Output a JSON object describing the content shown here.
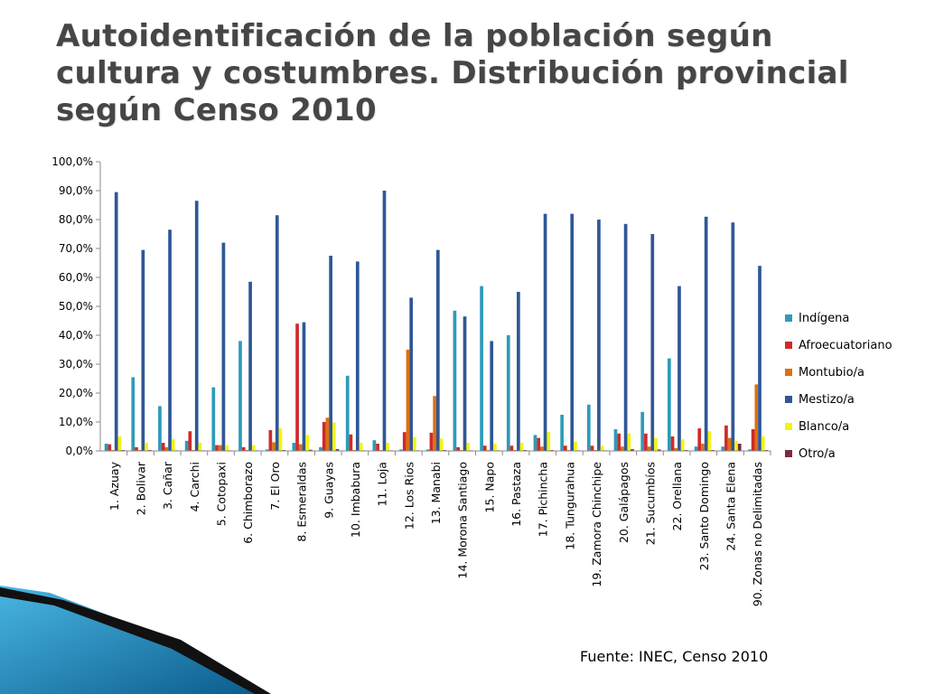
{
  "slide": {
    "title": "Autoidentificación de la población según cultura y costumbres. Distribución provincial según Censo 2010",
    "source": "Fuente: INEC, Censo 2010"
  },
  "chart_data": {
    "type": "bar",
    "categories": [
      "1. Azuay",
      "2. Bolivar",
      "3. Cañar",
      "4. Carchi",
      "5. Cotopaxi",
      "6. Chimborazo",
      "7. El Oro",
      "8. Esmeraldas",
      "9. Guayas",
      "10. Imbabura",
      "11. Loja",
      "12. Los Rios",
      "13. Manabi",
      "14. Morona Santiago",
      "15. Napo",
      "16. Pastaza",
      "17. Pichincha",
      "18. Tungurahua",
      "19. Zamora Chinchipe",
      "20. Galápagos",
      "21. Sucumbíos",
      "22. Orellana",
      "23. Santo Domingo",
      "24. Santa Elena",
      "90. Zonas no Delimitadas"
    ],
    "ylim": [
      0,
      100
    ],
    "yticks": [
      "0,0%",
      "10,0%",
      "20,0%",
      "30,0%",
      "40,0%",
      "50,0%",
      "60,0%",
      "70,0%",
      "80,0%",
      "90,0%",
      "100,0%"
    ],
    "legend_position": "right",
    "grid": false,
    "series": [
      {
        "name": "Indígena",
        "color": "#2e9bb8",
        "values": [
          2.5,
          25.5,
          15.5,
          3.5,
          22.0,
          38.0,
          0.5,
          2.8,
          1.3,
          26.0,
          3.7,
          0.5,
          0.5,
          48.5,
          57.0,
          40.0,
          5.5,
          12.5,
          16.0,
          7.5,
          13.5,
          32.0,
          1.5,
          1.5,
          0.5
        ]
      },
      {
        "name": "Afroecuatoriano",
        "color": "#cf2a2a",
        "values": [
          2.3,
          1.3,
          2.8,
          6.8,
          2.0,
          1.3,
          7.2,
          44.0,
          10.0,
          5.7,
          2.5,
          6.5,
          6.3,
          1.3,
          1.8,
          1.8,
          4.5,
          1.8,
          1.8,
          6.0,
          6.0,
          5.0,
          7.8,
          8.8,
          7.5
        ]
      },
      {
        "name": "Montubio/a",
        "color": "#de7010",
        "values": [
          0.3,
          0.3,
          1.3,
          0.3,
          2.0,
          0.3,
          3.0,
          2.3,
          11.5,
          0.3,
          0.3,
          35.0,
          19.0,
          0.3,
          0.3,
          0.3,
          1.5,
          0.3,
          0.3,
          1.5,
          1.5,
          1.0,
          2.5,
          4.5,
          23.0
        ]
      },
      {
        "name": "Mestizo/a",
        "color": "#2f5797",
        "values": [
          89.5,
          69.5,
          76.5,
          86.5,
          72.0,
          58.5,
          81.5,
          44.5,
          67.5,
          65.5,
          90.0,
          53.0,
          69.5,
          46.5,
          38.0,
          55.0,
          82.0,
          82.0,
          80.0,
          78.5,
          75.0,
          57.0,
          81.0,
          79.0,
          64.0
        ]
      },
      {
        "name": "Blanco/a",
        "color": "#f4f40d",
        "values": [
          5.0,
          2.8,
          4.0,
          2.8,
          2.0,
          2.0,
          7.8,
          5.5,
          9.8,
          2.8,
          2.8,
          4.8,
          4.3,
          2.8,
          2.5,
          2.8,
          6.5,
          3.2,
          1.8,
          6.0,
          4.5,
          4.0,
          6.8,
          3.5,
          5.0
        ]
      },
      {
        "name": "Otro/a",
        "color": "#7a2c3e",
        "values": [
          0.3,
          0.3,
          0.2,
          0.2,
          0.2,
          0.2,
          0.3,
          0.4,
          0.6,
          0.2,
          0.2,
          0.2,
          0.3,
          0.2,
          0.2,
          0.3,
          0.3,
          0.2,
          0.2,
          0.6,
          0.5,
          0.3,
          0.3,
          2.5,
          0.3
        ]
      }
    ]
  }
}
